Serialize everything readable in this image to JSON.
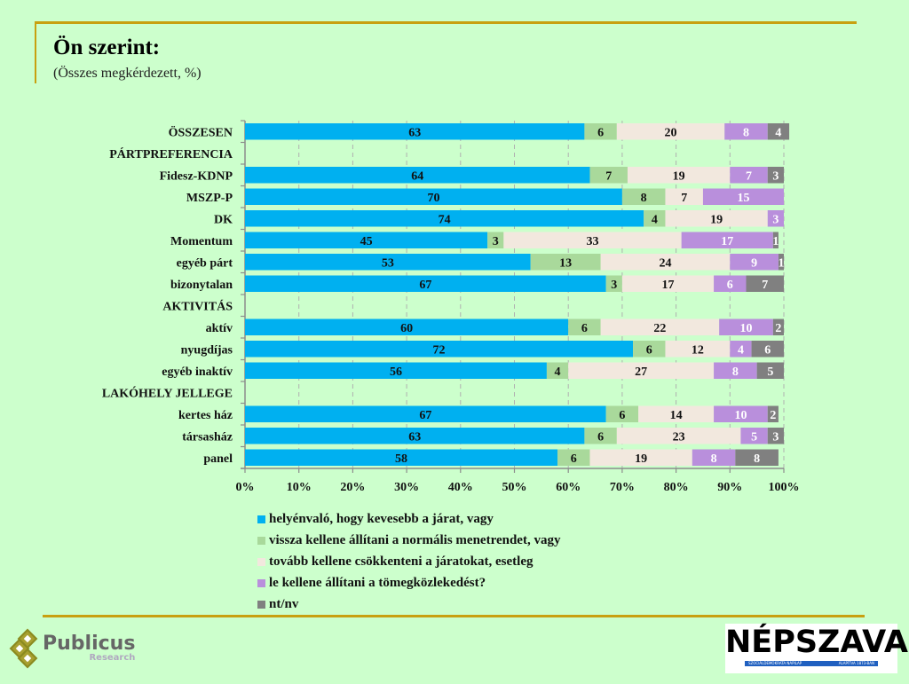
{
  "header": {
    "title": "Ön szerint:",
    "subtitle": "(Összes megkérdezett, %)"
  },
  "logos": {
    "publicus_name": "Publicus",
    "publicus_sub": "Research",
    "nepszava_name": "NÉPSZAVA",
    "nepszava_left": "SZOCIÁLDEMOKRATA NAPILAP",
    "nepszava_right": "ALAPÍTVA 1873-BAN"
  },
  "chart_data": {
    "type": "bar",
    "orientation": "horizontal",
    "stacked": "percent",
    "title": "Ön szerint:",
    "subtitle": "(Összes megkérdezett, %)",
    "xlabel": "",
    "ylabel": "",
    "xlim": [
      0,
      100
    ],
    "x_ticks": [
      "0%",
      "10%",
      "20%",
      "30%",
      "40%",
      "50%",
      "60%",
      "70%",
      "80%",
      "90%",
      "100%"
    ],
    "grid": "vertical dashed",
    "legend_position": "bottom",
    "categories": [
      "ÖSSZESEN",
      "PÁRTPREFERENCIA",
      "Fidesz-KDNP",
      "MSZP-P",
      "DK",
      "Momentum",
      "egyéb párt",
      "bizonytalan",
      "AKTIVITÁS",
      "aktív",
      "nyugdíjas",
      "egyéb inaktív",
      "LAKÓHELY JELLEGE",
      "kertes ház",
      "társasház",
      "panel"
    ],
    "series": [
      {
        "name": "helyénvaló, hogy kevesebb a járat, vagy",
        "color": "#00b0f0",
        "label_color": "#111111",
        "values": [
          63,
          null,
          64,
          70,
          74,
          45,
          53,
          67,
          null,
          60,
          72,
          56,
          null,
          67,
          63,
          58
        ]
      },
      {
        "name": "vissza kellene állítani a normális menetrendet, vagy",
        "color": "#a9d99b",
        "label_color": "#111111",
        "values": [
          6,
          null,
          7,
          8,
          4,
          3,
          13,
          3,
          null,
          6,
          6,
          4,
          null,
          6,
          6,
          6
        ]
      },
      {
        "name": "tovább kellene csökkenteni a járatokat, esetleg",
        "color": "#f2e8de",
        "label_color": "#111111",
        "values": [
          20,
          null,
          19,
          7,
          19,
          33,
          24,
          17,
          null,
          22,
          12,
          27,
          null,
          14,
          23,
          19
        ]
      },
      {
        "name": "le kellene állítani a tömegközlekedést?",
        "color": "#b98fdc",
        "label_color": "#ffffff",
        "values": [
          8,
          null,
          7,
          15,
          3,
          17,
          9,
          6,
          null,
          10,
          4,
          8,
          null,
          10,
          5,
          8
        ]
      },
      {
        "name": "nt/nv",
        "color": "#808080",
        "label_color": "#ffffff",
        "values": [
          4,
          null,
          3,
          0,
          0,
          1,
          1,
          7,
          null,
          2,
          6,
          5,
          null,
          2,
          3,
          8
        ]
      }
    ]
  }
}
